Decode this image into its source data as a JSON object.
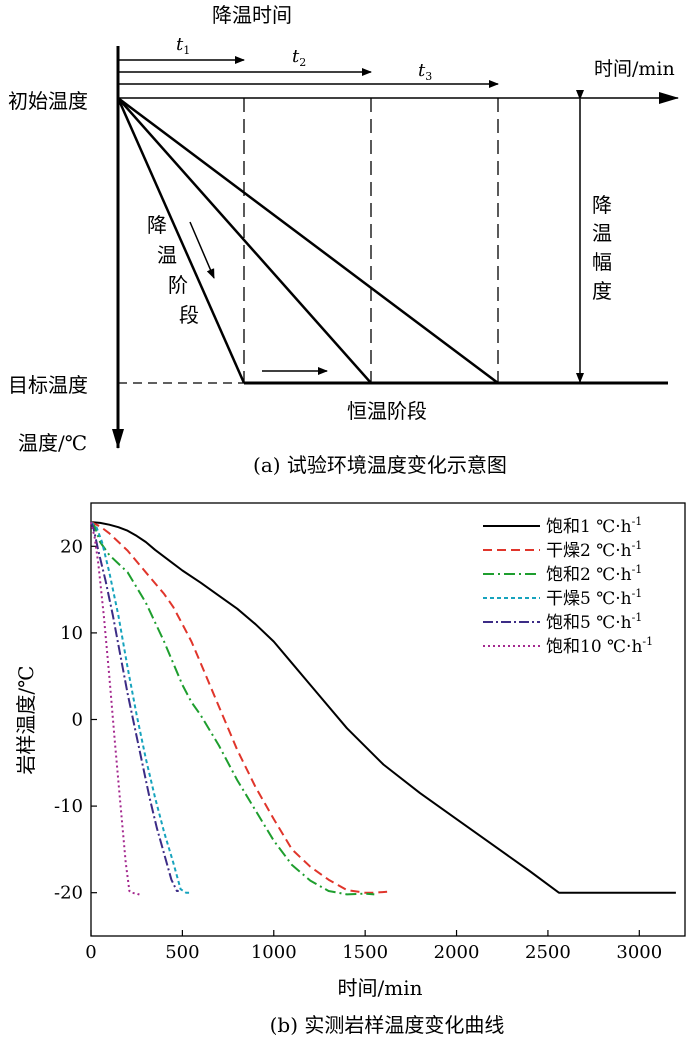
{
  "panel_a": {
    "caption": "(a) 试验环境温度变化示意图",
    "top_label": "降温时间",
    "t_labels": [
      {
        "base": "t",
        "sub": "1"
      },
      {
        "base": "t",
        "sub": "2"
      },
      {
        "base": "t",
        "sub": "3"
      }
    ],
    "time_axis_label": "时间/min",
    "initial_temp_label": "初始温度",
    "target_temp_label": "目标温度",
    "temp_axis_label": "温度/℃",
    "cooling_stage_chars": [
      "降",
      "温",
      "阶",
      "段"
    ],
    "cooling_range_chars": [
      "降",
      "温",
      "幅",
      "度"
    ],
    "constant_stage_label": "恒温阶段"
  },
  "chart_data": {
    "type": "line",
    "caption": "(b) 实测岩样温度变化曲线",
    "xlabel": "时间/min",
    "ylabel": "岩样温度/℃",
    "xlim": [
      0,
      3250
    ],
    "ylim": [
      -25,
      25
    ],
    "xticks": [
      0,
      500,
      1000,
      1500,
      2000,
      2500,
      3000
    ],
    "yticks": [
      -20,
      -10,
      0,
      10,
      20
    ],
    "grid": false,
    "legend_position": "top-right",
    "series": [
      {
        "name": "饱和1 ℃·h-1",
        "legend_base": "饱和1 ℃·h",
        "legend_sup": "-1",
        "color": "#000000",
        "dash": "solid",
        "x": [
          0,
          50,
          100,
          150,
          200,
          250,
          300,
          350,
          400,
          450,
          500,
          600,
          700,
          800,
          900,
          1000,
          1100,
          1200,
          1400,
          1600,
          1800,
          2000,
          2200,
          2400,
          2560,
          3000,
          3200
        ],
        "y": [
          22.8,
          22.7,
          22.5,
          22.2,
          21.8,
          21.2,
          20.5,
          19.6,
          18.8,
          18.0,
          17.2,
          15.8,
          14.3,
          12.8,
          11.0,
          9.0,
          6.5,
          4.0,
          -1.0,
          -5.2,
          -8.5,
          -11.5,
          -14.5,
          -17.5,
          -20,
          -20,
          -20
        ]
      },
      {
        "name": "干燥2 ℃·h-1",
        "legend_base": "干燥2 ℃·h",
        "legend_sup": "-1",
        "color": "#e0352b",
        "dash": "9,5",
        "x": [
          0,
          50,
          100,
          200,
          300,
          400,
          450,
          500,
          550,
          600,
          700,
          800,
          900,
          1000,
          1100,
          1200,
          1300,
          1400,
          1500,
          1550,
          1620
        ],
        "y": [
          22.8,
          22.3,
          21.5,
          19.5,
          17.0,
          14.5,
          13.0,
          11.0,
          9.0,
          6.5,
          1.5,
          -3.5,
          -7.8,
          -11.5,
          -15.0,
          -17.0,
          -18.5,
          -19.7,
          -20,
          -20,
          -19.9
        ]
      },
      {
        "name": "饱和2 ℃·h-1",
        "legend_base": "饱和2 ℃·h",
        "legend_sup": "-1",
        "color": "#1e9e2e",
        "dash": "11,4,2,4",
        "x": [
          0,
          20,
          50,
          100,
          150,
          200,
          300,
          400,
          500,
          550,
          600,
          700,
          800,
          900,
          1000,
          1100,
          1200,
          1300,
          1400,
          1500,
          1550
        ],
        "y": [
          22.8,
          22.3,
          20.5,
          19.0,
          18.0,
          17.0,
          13.5,
          9.0,
          4.0,
          2.0,
          0.5,
          -3.0,
          -7.0,
          -10.5,
          -14.0,
          -16.8,
          -18.6,
          -19.8,
          -20.2,
          -20.1,
          -20.2
        ]
      },
      {
        "name": "干燥5 ℃·h-1",
        "legend_base": "干燥5 ℃·h",
        "legend_sup": "-1",
        "color": "#16a3bd",
        "dash": "4,3",
        "x": [
          0,
          30,
          60,
          100,
          150,
          200,
          250,
          300,
          350,
          400,
          450,
          490,
          520,
          550
        ],
        "y": [
          22.8,
          22.2,
          20.5,
          17.0,
          12.0,
          6.0,
          0.5,
          -4.5,
          -9.0,
          -13.0,
          -16.5,
          -19.6,
          -20.0,
          -20.0
        ]
      },
      {
        "name": "饱和5 ℃·h-1",
        "legend_base": "饱和5 ℃·h",
        "legend_sup": "-1",
        "color": "#3c2c86",
        "dash": "10,3,2,3",
        "x": [
          0,
          15,
          40,
          80,
          120,
          160,
          200,
          240,
          280,
          320,
          360,
          400,
          440,
          470,
          480
        ],
        "y": [
          22.8,
          22.0,
          19.5,
          16.0,
          12.0,
          7.5,
          3.0,
          -1.0,
          -5.0,
          -9.0,
          -12.5,
          -15.5,
          -18.5,
          -19.8,
          -19.8
        ]
      },
      {
        "name": "饱和10 ℃·h-1",
        "legend_base": "饱和10 ℃·h",
        "legend_sup": "-1",
        "color": "#a4288e",
        "dash": "2,3",
        "x": [
          0,
          20,
          40,
          70,
          100,
          130,
          160,
          190,
          210,
          220,
          250,
          275
        ],
        "y": [
          22.8,
          21.0,
          18.0,
          12.0,
          5.0,
          -2.5,
          -9.5,
          -16.5,
          -19.8,
          -20.0,
          -20.1,
          -20.3
        ]
      }
    ]
  }
}
